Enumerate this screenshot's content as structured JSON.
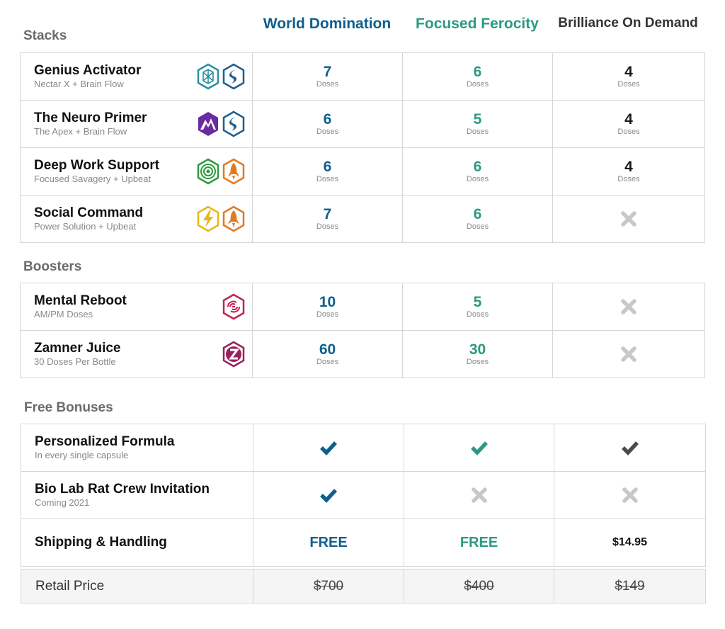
{
  "plans": {
    "world_domination": "World Domination",
    "focused_ferocity": "Focused Ferocity",
    "brilliance_on_demand": "Brilliance On Demand"
  },
  "colors": {
    "world_domination": "#0f5f8c",
    "focused_ferocity": "#2b9a83",
    "brilliance_on_demand": "#333333",
    "x_mark": "#c8c8c8"
  },
  "unit_label": "Doses",
  "stacks": {
    "title": "Stacks",
    "rows": [
      {
        "name": "Genius Activator",
        "sub": "Nectar X + Brain Flow",
        "icons": [
          "nectar-x-icon",
          "brain-flow-icon"
        ],
        "wd": "7",
        "ff": "6",
        "bd": "4"
      },
      {
        "name": "The Neuro Primer",
        "sub": "The Apex + Brain Flow",
        "icons": [
          "apex-icon",
          "brain-flow-icon"
        ],
        "wd": "6",
        "ff": "5",
        "bd": "4"
      },
      {
        "name": "Deep Work Support",
        "sub": "Focused Savagery + Upbeat",
        "icons": [
          "focused-savagery-icon",
          "upbeat-icon"
        ],
        "wd": "6",
        "ff": "6",
        "bd": "4"
      },
      {
        "name": "Social Command",
        "sub": "Power Solution + Upbeat",
        "icons": [
          "power-solution-icon",
          "upbeat-icon"
        ],
        "wd": "7",
        "ff": "6",
        "bd": null
      }
    ]
  },
  "boosters": {
    "title": "Boosters",
    "rows": [
      {
        "name": "Mental Reboot",
        "sub": "AM/PM Doses",
        "icons": [
          "mental-reboot-icon"
        ],
        "wd": "10",
        "ff": "5",
        "bd": null
      },
      {
        "name": "Zamner Juice",
        "sub": "30 Doses Per Bottle",
        "icons": [
          "zamner-juice-icon"
        ],
        "wd": "60",
        "ff": "30",
        "bd": null
      }
    ]
  },
  "bonuses": {
    "title": "Free Bonuses",
    "rows": [
      {
        "name": "Personalized Formula",
        "sub": "In every single capsule",
        "wd": "check",
        "ff": "check",
        "bd": "check"
      },
      {
        "name": "Bio Lab Rat Crew Invitation",
        "sub": "Coming 2021",
        "wd": "check",
        "ff": "x",
        "bd": "x"
      }
    ],
    "shipping": {
      "name": "Shipping & Handling",
      "wd": "FREE",
      "ff": "FREE",
      "bd": "$14.95"
    }
  },
  "retail": {
    "label": "Retail Price",
    "wd": "$700",
    "ff": "$400",
    "bd": "$149"
  }
}
